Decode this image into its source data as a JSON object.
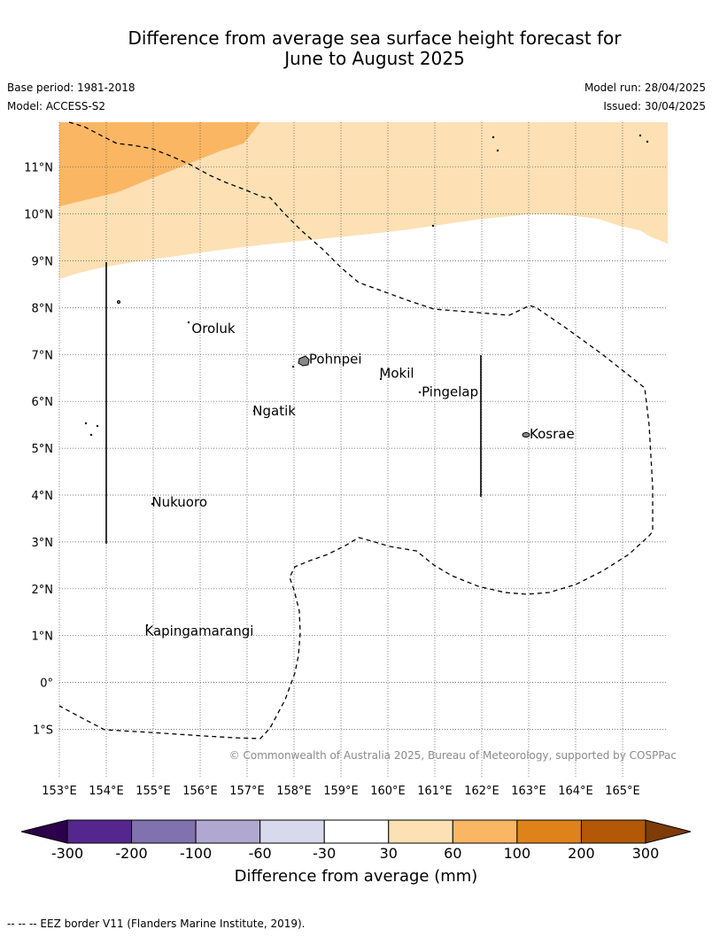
{
  "title_line1": "Difference from average sea surface height forecast for",
  "title_line2": "June to August 2025",
  "meta": {
    "base_period": "Base period: 1981-2018",
    "model": "Model: ACCESS-S2",
    "model_run": "Model run: 28/04/2025",
    "issued": "Issued: 30/04/2025"
  },
  "map": {
    "lon_range": [
      153,
      166
    ],
    "lat_range": [
      -2,
      12
    ],
    "lon_ticks": [
      "153°E",
      "154°E",
      "155°E",
      "156°E",
      "157°E",
      "158°E",
      "159°E",
      "160°E",
      "161°E",
      "162°E",
      "163°E",
      "164°E",
      "165°E"
    ],
    "lat_ticks": [
      "11°N",
      "10°N",
      "9°N",
      "8°N",
      "7°N",
      "6°N",
      "5°N",
      "4°N",
      "3°N",
      "2°N",
      "1°N",
      "0°",
      "1°S"
    ],
    "places": [
      {
        "name": "Oroluk",
        "lon": 155.8,
        "lat": 7.55
      },
      {
        "name": "Pohnpei",
        "lon": 158.3,
        "lat": 6.9
      },
      {
        "name": "Mokil",
        "lon": 159.8,
        "lat": 6.6
      },
      {
        "name": "Pingelap",
        "lon": 160.7,
        "lat": 6.2
      },
      {
        "name": "Ngatik",
        "lon": 157.1,
        "lat": 5.8
      },
      {
        "name": "Kosrae",
        "lon": 163.0,
        "lat": 5.3
      },
      {
        "name": "Nukuoro",
        "lon": 154.95,
        "lat": 3.85
      },
      {
        "name": "Kapingamarangi",
        "lon": 154.8,
        "lat": 1.1
      }
    ],
    "grid": true,
    "colors": {
      "light_orange": "#fde0b4",
      "orange": "#fbb663",
      "land": "#888888"
    }
  },
  "attribution": "© Commonwealth of Australia 2025, Bureau of Meteorology, supported by COSPPac",
  "colorbar": {
    "title": "Difference from average (mm)",
    "ticks": [
      "-300",
      "-200",
      "-100",
      "-60",
      "-30",
      "30",
      "60",
      "100",
      "200",
      "300"
    ],
    "colors": [
      "#55278e",
      "#7f72ae",
      "#b1a8d1",
      "#d8d9ec",
      "#ffffff",
      "#fde0b4",
      "#fbb663",
      "#e0821a",
      "#b35806"
    ],
    "under_color": "#2d004b",
    "over_color": "#7f3b08"
  },
  "footnote": "--  --  -- EEZ border V11 (Flanders Marine Institute, 2019)."
}
